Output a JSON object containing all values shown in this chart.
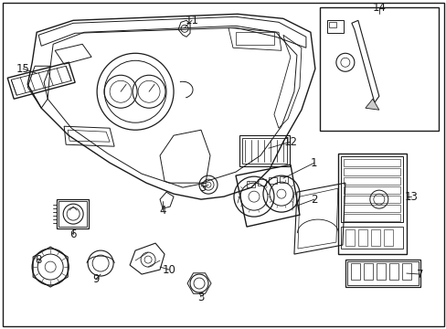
{
  "bg_color": "#ffffff",
  "line_color": "#1a1a1a",
  "fig_width": 4.89,
  "fig_height": 3.6,
  "dpi": 100,
  "label_font_size": 8.5
}
